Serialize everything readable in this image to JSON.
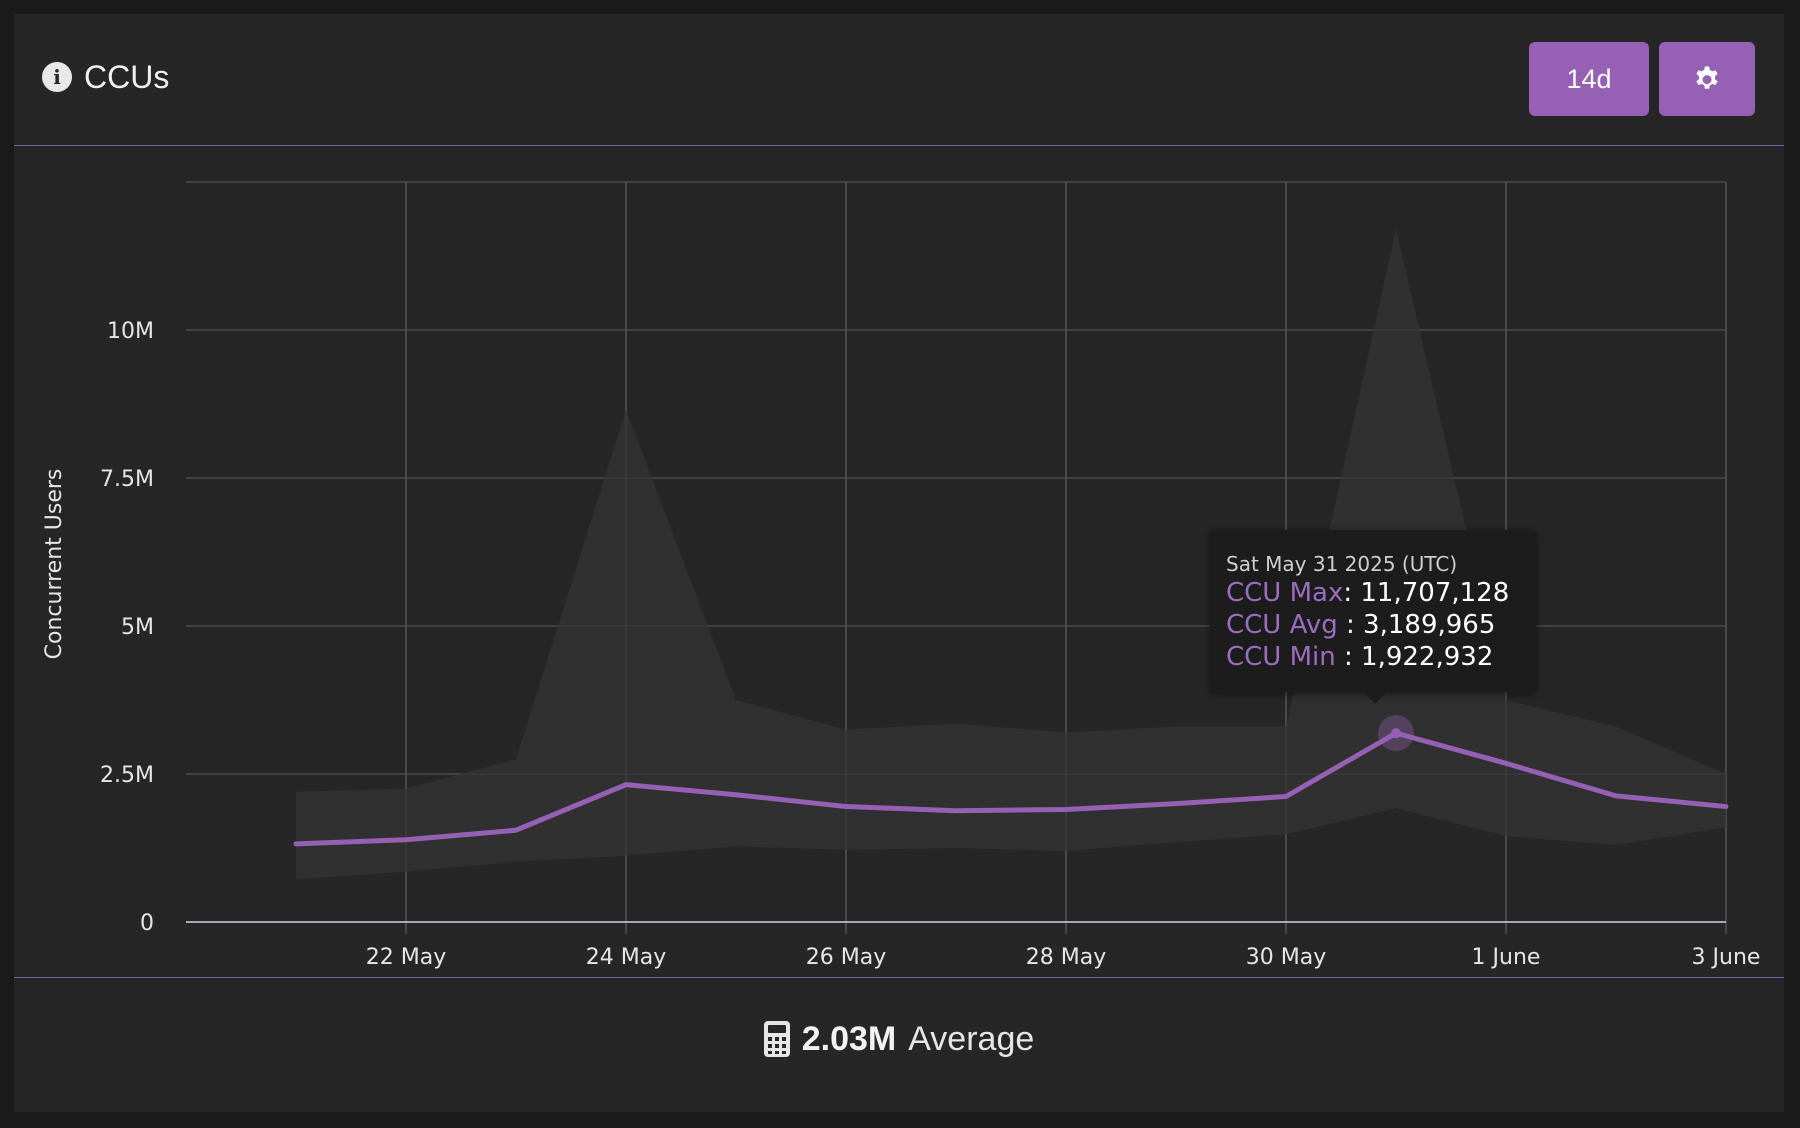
{
  "header": {
    "title": "CCUs",
    "range_label": "14d"
  },
  "icons": {
    "info": "info-icon",
    "settings": "gear-icon",
    "footer": "calculator-icon"
  },
  "colors": {
    "accent": "#9660b5",
    "line": "#9660b5",
    "band": "#343434",
    "background": "#262626"
  },
  "chart_data": {
    "type": "line",
    "ylabel": "Concurrent Users",
    "yticks": [
      "0",
      "2.5M",
      "5M",
      "7.5M",
      "10M"
    ],
    "ytick_values": [
      0,
      2500000,
      5000000,
      7500000,
      10000000
    ],
    "ylim": [
      0,
      12500000
    ],
    "xticks": [
      "22 May",
      "24 May",
      "26 May",
      "28 May",
      "30 May",
      "1 June",
      "3 June"
    ],
    "xtick_values": [
      "2025-05-22",
      "2025-05-24",
      "2025-05-26",
      "2025-05-28",
      "2025-05-30",
      "2025-06-01",
      "2025-06-03"
    ],
    "xlim": [
      "2025-05-20",
      "2025-06-03"
    ],
    "grid": true,
    "x": [
      "2025-05-21",
      "2025-05-22",
      "2025-05-23",
      "2025-05-24",
      "2025-05-25",
      "2025-05-26",
      "2025-05-27",
      "2025-05-28",
      "2025-05-29",
      "2025-05-30",
      "2025-05-31",
      "2025-06-01",
      "2025-06-02",
      "2025-06-03"
    ],
    "series": [
      {
        "name": "CCU Max",
        "values": [
          2200000,
          2250000,
          2750000,
          8650000,
          3750000,
          3250000,
          3350000,
          3200000,
          3300000,
          3300000,
          11707128,
          3750000,
          3300000,
          2500000
        ]
      },
      {
        "name": "CCU Avg",
        "values": [
          1320000,
          1390000,
          1550000,
          2320000,
          2150000,
          1950000,
          1880000,
          1900000,
          2000000,
          2120000,
          3189965,
          2680000,
          2130000,
          1950000
        ]
      },
      {
        "name": "CCU Min",
        "values": [
          720000,
          850000,
          1020000,
          1120000,
          1280000,
          1220000,
          1250000,
          1200000,
          1350000,
          1480000,
          1922932,
          1450000,
          1300000,
          1600000
        ]
      }
    ]
  },
  "tooltip": {
    "date": "Sat May 31 2025 (UTC)",
    "max_label": "CCU Max",
    "max_value": ": 11,707,128",
    "avg_label": "CCU Avg",
    "avg_value": " : 3,189,965",
    "min_label": "CCU Min",
    "min_value": " : 1,922,932"
  },
  "footer": {
    "average_value": "2.03M",
    "average_label": "Average"
  }
}
